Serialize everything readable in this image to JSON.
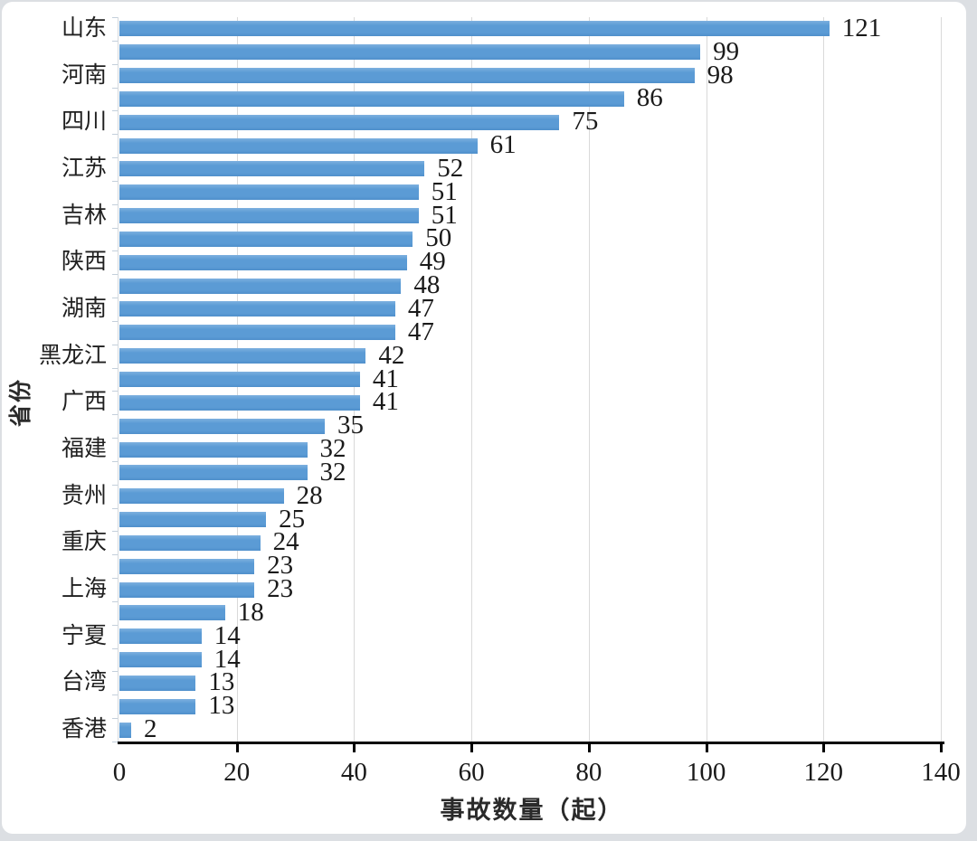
{
  "chart_data": {
    "type": "bar",
    "orientation": "horizontal",
    "title": "",
    "xlabel": "事故数量（起）",
    "ylabel": "省份",
    "xlim": [
      0,
      140
    ],
    "xticks": [
      0,
      20,
      40,
      60,
      80,
      100,
      120,
      140
    ],
    "grid": "vertical-light-gray",
    "legend": "none",
    "bar_color": "#5B9BD5",
    "value_labels_shown": true,
    "category_labels_every_other_row": true,
    "bars": [
      {
        "label": "山东",
        "value": 121
      },
      {
        "label": "",
        "value": 99
      },
      {
        "label": "河南",
        "value": 98
      },
      {
        "label": "",
        "value": 86
      },
      {
        "label": "四川",
        "value": 75
      },
      {
        "label": "",
        "value": 61
      },
      {
        "label": "江苏",
        "value": 52
      },
      {
        "label": "",
        "value": 51
      },
      {
        "label": "吉林",
        "value": 51
      },
      {
        "label": "",
        "value": 50
      },
      {
        "label": "陕西",
        "value": 49
      },
      {
        "label": "",
        "value": 48
      },
      {
        "label": "湖南",
        "value": 47
      },
      {
        "label": "",
        "value": 47
      },
      {
        "label": "黑龙江",
        "value": 42
      },
      {
        "label": "",
        "value": 41
      },
      {
        "label": "广西",
        "value": 41
      },
      {
        "label": "",
        "value": 35
      },
      {
        "label": "福建",
        "value": 32
      },
      {
        "label": "",
        "value": 32
      },
      {
        "label": "贵州",
        "value": 28
      },
      {
        "label": "",
        "value": 25
      },
      {
        "label": "重庆",
        "value": 24
      },
      {
        "label": "",
        "value": 23
      },
      {
        "label": "上海",
        "value": 23
      },
      {
        "label": "",
        "value": 18
      },
      {
        "label": "宁夏",
        "value": 14
      },
      {
        "label": "",
        "value": 14
      },
      {
        "label": "台湾",
        "value": 13
      },
      {
        "label": "",
        "value": 13
      },
      {
        "label": "香港",
        "value": 2
      }
    ]
  }
}
